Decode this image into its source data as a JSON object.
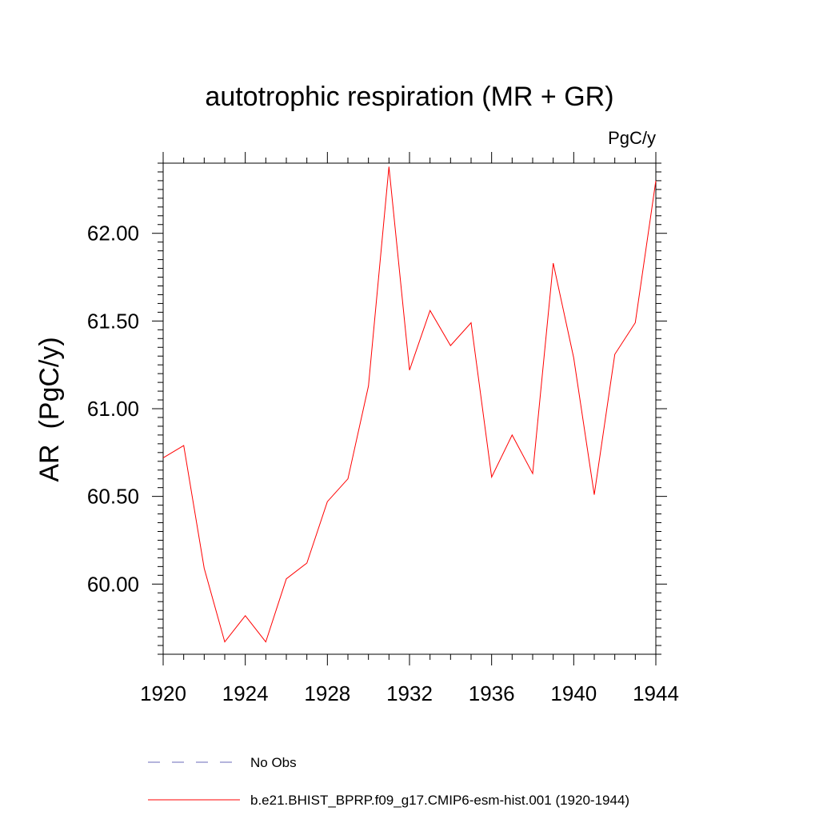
{
  "chart_data": {
    "type": "line",
    "title": "autotrophic respiration (MR + GR)",
    "units_label": "PgC/y",
    "xlabel": "",
    "ylabel": "AR  (PgC/y)",
    "xlim": [
      1920,
      1944
    ],
    "ylim": [
      59.6,
      62.4
    ],
    "x_ticks": [
      1920,
      1924,
      1928,
      1932,
      1936,
      1940,
      1944
    ],
    "x_tick_labels": [
      "1920",
      "1924",
      "1928",
      "1932",
      "1936",
      "1940",
      "1944"
    ],
    "y_ticks": [
      60.0,
      60.5,
      61.0,
      61.5,
      62.0
    ],
    "y_tick_labels": [
      "60.00",
      "60.50",
      "61.00",
      "61.50",
      "62.00"
    ],
    "grid": false,
    "legend_position": "bottom",
    "series": [
      {
        "name": "b.e21.BHIST_BPRP.f09_g17.CMIP6-esm-hist.001 (1920-1944)",
        "color": "#ff0000",
        "style": "solid",
        "x": [
          1920,
          1921,
          1922,
          1923,
          1924,
          1925,
          1926,
          1927,
          1928,
          1929,
          1930,
          1931,
          1932,
          1933,
          1934,
          1935,
          1936,
          1937,
          1938,
          1939,
          1940,
          1941,
          1942,
          1943,
          1944
        ],
        "values": [
          60.72,
          60.79,
          60.09,
          59.67,
          59.82,
          59.67,
          60.03,
          60.12,
          60.47,
          60.6,
          61.13,
          62.38,
          61.22,
          61.56,
          61.36,
          61.49,
          60.61,
          60.85,
          60.63,
          61.83,
          61.29,
          60.51,
          61.31,
          61.49,
          62.3
        ]
      }
    ],
    "legend": [
      {
        "label": "No Obs",
        "color": "#6a6ab8",
        "style": "dashed"
      },
      {
        "label": "b.e21.BHIST_BPRP.f09_g17.CMIP6-esm-hist.001 (1920-1944)",
        "color": "#ff0000",
        "style": "solid"
      }
    ]
  }
}
